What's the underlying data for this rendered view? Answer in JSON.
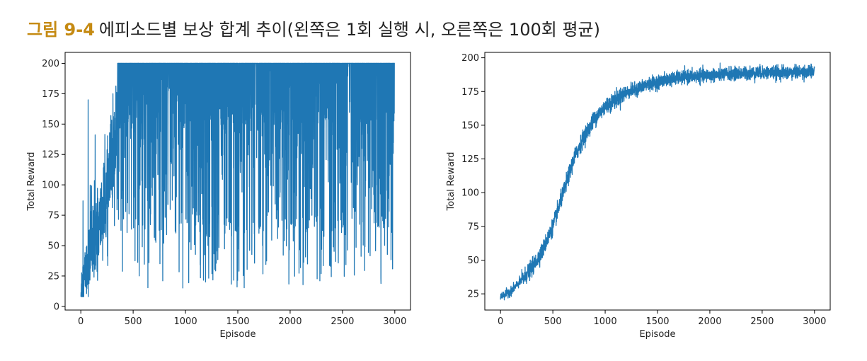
{
  "caption": {
    "label": "그림 9-4",
    "text": "에피소드별 보상 합계 추이(왼쪽은 1회 실행 시, 오른쪽은 100회 평균)"
  },
  "colors": {
    "series": "#1f77b4",
    "axis": "#000000",
    "caption_label": "#c58a12"
  },
  "chart_data": [
    {
      "type": "line",
      "title": "",
      "xlabel": "Episode",
      "ylabel": "Total Reward",
      "xlim": [
        -150,
        3150
      ],
      "ylim": [
        -3,
        209
      ],
      "xticks": [
        0,
        500,
        1000,
        1500,
        2000,
        2500,
        3000
      ],
      "yticks": [
        0,
        25,
        50,
        75,
        100,
        125,
        150,
        175,
        200
      ],
      "series": [
        {
          "episodes": [
            0,
            3000
          ],
          "description_points": [
            {
              "x": 0,
              "y": 12
            },
            {
              "x": 50,
              "y": 30
            },
            {
              "x": 100,
              "y": 45
            },
            {
              "x": 150,
              "y": 55
            },
            {
              "x": 200,
              "y": 75
            },
            {
              "x": 250,
              "y": 90
            },
            {
              "x": 300,
              "y": 120
            },
            {
              "x": 350,
              "y": 150
            },
            {
              "x": 400,
              "y": 165
            },
            {
              "x": 500,
              "y": 175
            },
            {
              "x": 700,
              "y": 182
            },
            {
              "x": 1000,
              "y": 186
            },
            {
              "x": 1500,
              "y": 188
            },
            {
              "x": 2000,
              "y": 189
            },
            {
              "x": 2500,
              "y": 190
            },
            {
              "x": 3000,
              "y": 191
            }
          ],
          "max": 200,
          "min_after_500": 15
        }
      ]
    },
    {
      "type": "line",
      "title": "",
      "xlabel": "Episode",
      "ylabel": "Total Reward",
      "xlim": [
        -150,
        3150
      ],
      "ylim": [
        13,
        204
      ],
      "xticks": [
        0,
        500,
        1000,
        1500,
        2000,
        2500,
        3000
      ],
      "yticks": [
        25,
        50,
        75,
        100,
        125,
        150,
        175,
        200
      ],
      "series": [
        {
          "curve_points": [
            {
              "x": 0,
              "y": 23
            },
            {
              "x": 100,
              "y": 27
            },
            {
              "x": 200,
              "y": 35
            },
            {
              "x": 300,
              "y": 44
            },
            {
              "x": 400,
              "y": 57
            },
            {
              "x": 500,
              "y": 75
            },
            {
              "x": 600,
              "y": 100
            },
            {
              "x": 700,
              "y": 125
            },
            {
              "x": 800,
              "y": 142
            },
            {
              "x": 900,
              "y": 155
            },
            {
              "x": 1000,
              "y": 164
            },
            {
              "x": 1200,
              "y": 174
            },
            {
              "x": 1400,
              "y": 180
            },
            {
              "x": 1600,
              "y": 184
            },
            {
              "x": 1800,
              "y": 186
            },
            {
              "x": 2000,
              "y": 187
            },
            {
              "x": 2200,
              "y": 188
            },
            {
              "x": 2500,
              "y": 189
            },
            {
              "x": 2800,
              "y": 189
            },
            {
              "x": 3000,
              "y": 190
            }
          ]
        }
      ]
    }
  ]
}
